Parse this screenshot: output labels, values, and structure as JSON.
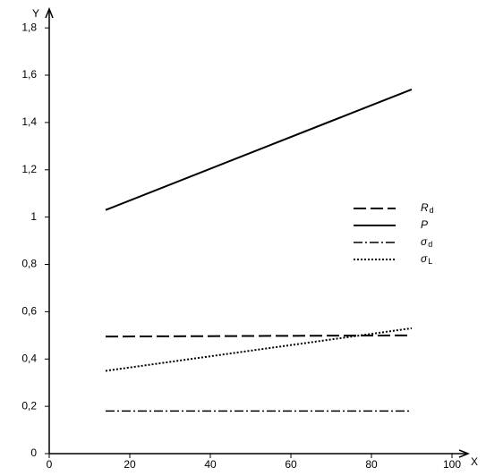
{
  "chart_data": {
    "type": "line",
    "x_label": "X",
    "y_label": "Y",
    "xlim": [
      0,
      104
    ],
    "ylim": [
      0,
      1.88
    ],
    "xticks": [
      0,
      20,
      40,
      60,
      80,
      100
    ],
    "yticks": [
      0,
      {
        "value": 0.2,
        "label": "0,2"
      },
      {
        "value": 0.4,
        "label": "0,4"
      },
      {
        "value": 0.6,
        "label": "0,6"
      },
      {
        "value": 0.8,
        "label": "0,8"
      },
      1,
      {
        "value": 1.2,
        "label": "1,2"
      },
      {
        "value": 1.4,
        "label": "1,4"
      },
      {
        "value": 1.6,
        "label": "1,6"
      },
      {
        "value": 1.8,
        "label": "1,8"
      }
    ],
    "grid": false,
    "series": [
      {
        "name": "Rd",
        "color": "#000000",
        "dash": "dashed",
        "x": [
          14,
          90
        ],
        "values": [
          0.495,
          0.5
        ]
      },
      {
        "name": "P",
        "color": "#000000",
        "dash": "solid",
        "x": [
          14,
          90
        ],
        "values": [
          1.03,
          1.54
        ]
      },
      {
        "name": "σd",
        "color": "#000000",
        "dash": "dashdot",
        "x": [
          14,
          90
        ],
        "values": [
          0.18,
          0.18
        ]
      },
      {
        "name": "σL",
        "color": "#000000",
        "dash": "dotted",
        "x": [
          14,
          90
        ],
        "values": [
          0.35,
          0.53
        ]
      }
    ]
  }
}
